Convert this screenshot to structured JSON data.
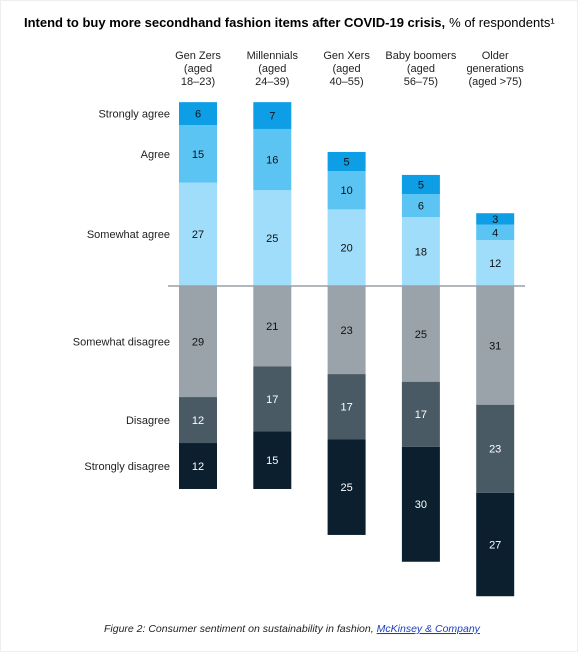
{
  "chart_data": {
    "type": "diverging-bar",
    "title": "Intend to buy more secondhand fashion items after COVID-19 crisis,",
    "subtitle": "% of respondents¹",
    "categories": [
      [
        "Gen Zers",
        "(aged",
        "18–23)"
      ],
      [
        "Millennials",
        "(aged",
        "24–39)"
      ],
      [
        "Gen Xers",
        "(aged",
        "40–55)"
      ],
      [
        "Baby boomers",
        "(aged",
        "56–75)"
      ],
      [
        "Older",
        "generations",
        "(aged >75)"
      ]
    ],
    "series": [
      {
        "name": "Strongly agree",
        "color": "#0e9ee6",
        "values": [
          6,
          7,
          5,
          5,
          3
        ]
      },
      {
        "name": "Agree",
        "color": "#5cc4f3",
        "values": [
          15,
          16,
          10,
          6,
          4
        ]
      },
      {
        "name": "Somewhat agree",
        "color": "#a0ddfa",
        "values": [
          27,
          25,
          20,
          18,
          12
        ]
      },
      {
        "name": "Somewhat disagree",
        "color": "#9ba3aa",
        "values": [
          29,
          21,
          23,
          25,
          31
        ]
      },
      {
        "name": "Disagree",
        "color": "#4a5a65",
        "values": [
          12,
          17,
          17,
          17,
          23
        ]
      },
      {
        "name": "Strongly disagree",
        "color": "#0b1f2e",
        "values": [
          12,
          15,
          25,
          30,
          27
        ]
      }
    ],
    "caption": "Figure 2: Consumer sentiment on sustainability in fashion,",
    "source": "McKinsey & Company"
  }
}
